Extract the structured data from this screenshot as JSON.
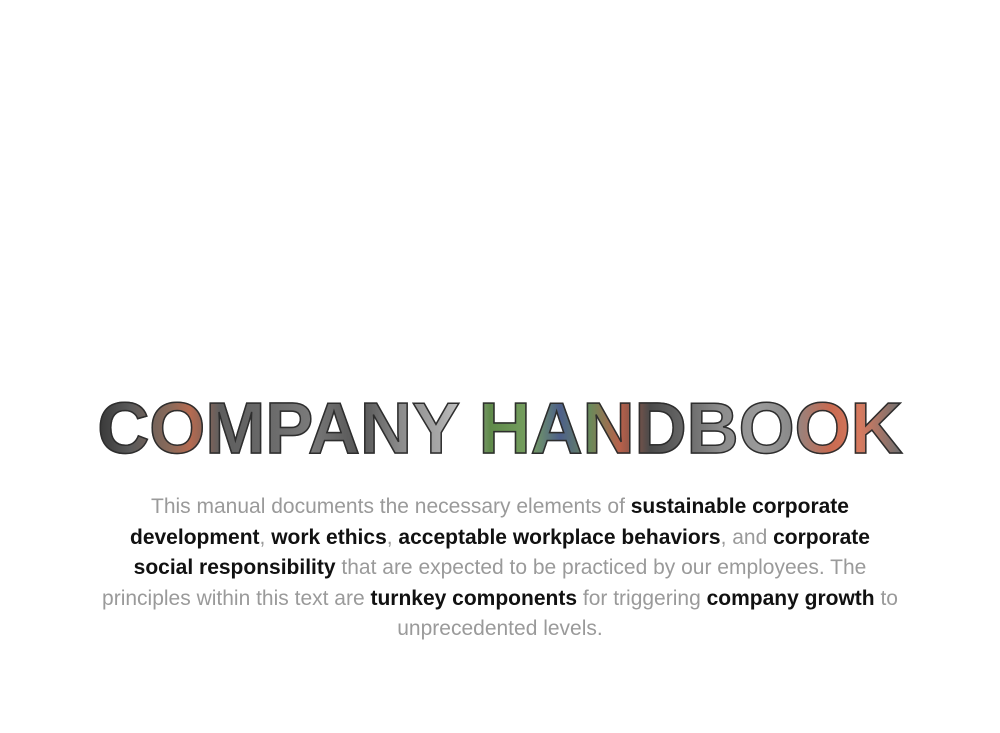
{
  "document": {
    "title": "COMPANY HANDBOOK",
    "intro": {
      "t1": "This manual documents the necessary elements of ",
      "b1": "sustainable corporate development",
      "t2": ", ",
      "b2": "work ethics",
      "t3": ", ",
      "b3": "acceptable workplace behaviors",
      "t4": ", and ",
      "b4": "corporate social responsibility",
      "t5": " that are expected to be practiced by our employees. The principles within this text are ",
      "b5": "turnkey components",
      "t6": " for triggering ",
      "b6": "company growth",
      "t7": " to unprecedented levels."
    }
  },
  "colors": {
    "background": "#ffffff",
    "body_text": "#9a9a9a",
    "emphasis_text": "#111111"
  }
}
